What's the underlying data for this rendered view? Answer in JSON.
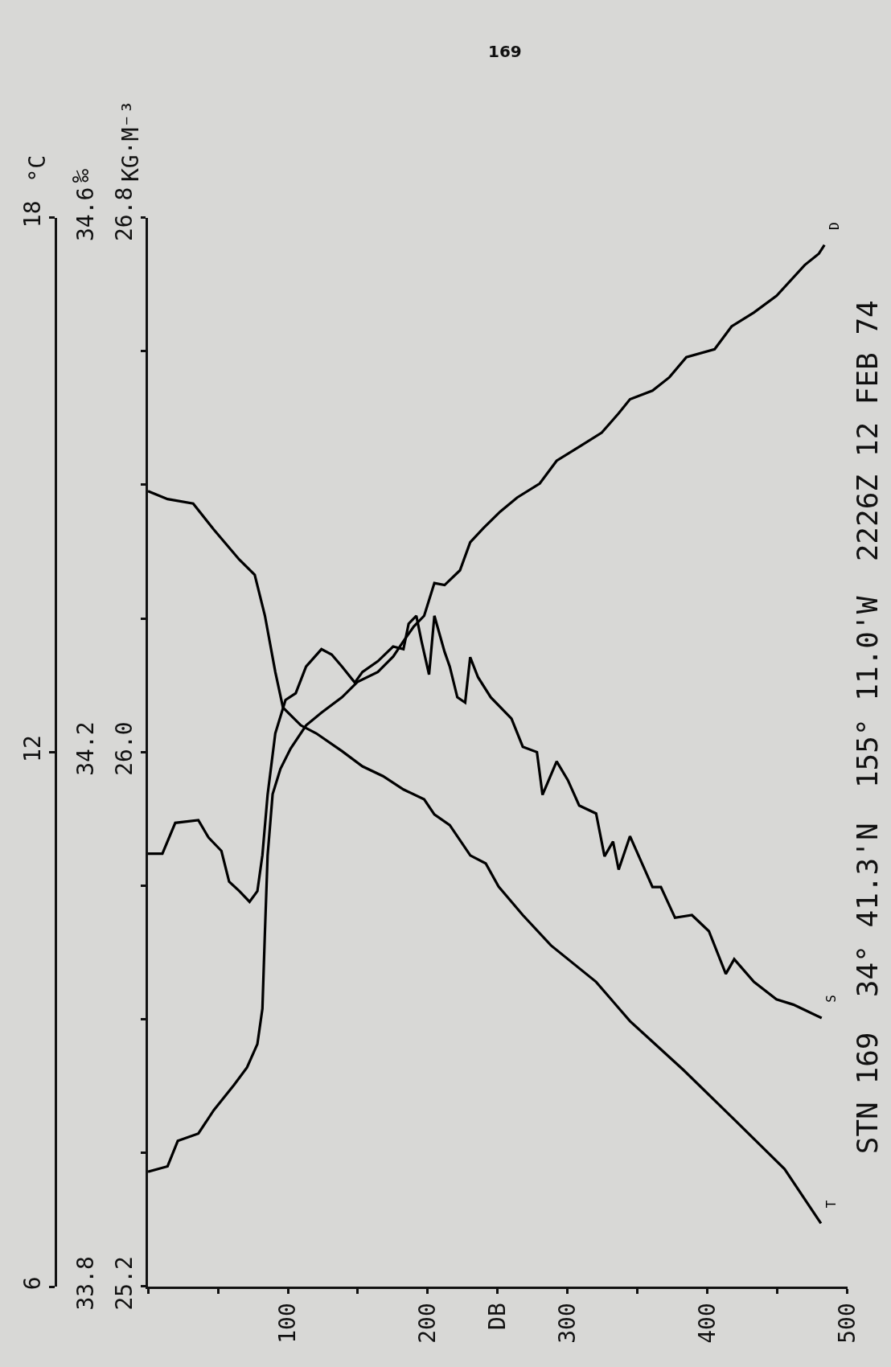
{
  "chart_data": {
    "type": "line",
    "title": "STN 169  34° 41.3'N  155° 11.0'W  2226Z 12 FEB 74",
    "ylabel": "°C",
    "y2label": "‰",
    "y3label": "KG·M⁻³",
    "annotations": [
      "169"
    ],
    "xlim": [
      0,
      500
    ],
    "xticks": [
      {
        "value": 0,
        "label": null
      },
      {
        "value": 50,
        "label": null
      },
      100,
      {
        "value": 150,
        "label": null
      },
      200,
      {
        "value": 250,
        "label": "DB"
      },
      300,
      {
        "value": 350,
        "label": null
      },
      400,
      {
        "value": 450,
        "label": null
      },
      500
    ],
    "ylim": [
      6,
      18
    ],
    "yticks": [
      6,
      12,
      18
    ],
    "y2lim": [
      33.8,
      34.6
    ],
    "y2ticks": [
      33.8,
      34.2,
      34.6
    ],
    "y3lim": [
      25.2,
      26.8
    ],
    "y3ticks": [
      25.2,
      {
        "value": 25.4,
        "label": null
      },
      {
        "value": 25.6,
        "label": null
      },
      {
        "value": 25.8,
        "label": null
      },
      {
        "value": 26.0,
        "label": "26.0"
      },
      {
        "value": 26.2,
        "label": null
      },
      {
        "value": 26.4,
        "label": null
      },
      {
        "value": 26.6,
        "label": null
      },
      26.8
    ],
    "grid": false,
    "legend": false,
    "marker": "none",
    "line_style": "solid",
    "series": [
      {
        "name": "T",
        "color": "#000000",
        "x": [
          0,
          14,
          32.3,
          46.9,
          65.3,
          76.3,
          83.6,
          91,
          96.5,
          109.3,
          120.3,
          138.7,
          153.3,
          168,
          182.6,
          197.4,
          204.7,
          215.7,
          230.4,
          241.4,
          250.6,
          267.9,
          288,
          320.3,
          344.5,
          382.8,
          420,
          455,
          481
        ],
        "values": [
          14.93,
          14.84,
          14.79,
          14.5,
          14.16,
          13.99,
          13.53,
          12.9,
          12.5,
          12.3,
          12.21,
          12.01,
          11.84,
          11.73,
          11.58,
          11.47,
          11.3,
          11.18,
          10.84,
          10.75,
          10.49,
          10.17,
          9.83,
          9.42,
          8.98,
          8.43,
          7.86,
          7.32,
          6.71
        ]
      },
      {
        "name": "S",
        "color": "#000000",
        "axis": "y2",
        "x": [
          0,
          10.3,
          19.5,
          36,
          43.3,
          52.5,
          58,
          65.3,
          72.6,
          78.2,
          81.8,
          85.5,
          91,
          98.3,
          105.6,
          113,
          124,
          131.3,
          138.7,
          147.8,
          153.3,
          164.3,
          175.2,
          182.6,
          186.3,
          191.8,
          195.5,
          200.9,
          204.7,
          212,
          215.7,
          221.1,
          226.7,
          230.3,
          235.9,
          245,
          259.8,
          267.9,
          278,
          282,
          292.1,
          300.1,
          308.2,
          320.3,
          326.3,
          332.4,
          336.4,
          344.5,
          360.6,
          366.6,
          376.7,
          388.8,
          400.9,
          413,
          419,
          433.1,
          449.2,
          461.3,
          469.4,
          481.5
        ],
        "values": [
          34.124,
          34.124,
          34.147,
          34.149,
          34.136,
          34.126,
          34.103,
          34.096,
          34.088,
          34.096,
          34.123,
          34.168,
          34.214,
          34.239,
          34.244,
          34.264,
          34.277,
          34.273,
          34.264,
          34.252,
          34.26,
          34.268,
          34.279,
          34.277,
          34.296,
          34.302,
          34.283,
          34.258,
          34.302,
          34.275,
          34.264,
          34.241,
          34.237,
          34.271,
          34.256,
          34.241,
          34.225,
          34.204,
          34.2,
          34.168,
          34.193,
          34.179,
          34.16,
          34.154,
          34.122,
          34.133,
          34.112,
          34.137,
          34.099,
          34.099,
          34.076,
          34.078,
          34.066,
          34.034,
          34.045,
          34.028,
          34.015,
          34.011,
          34.007,
          34.001
        ]
      },
      {
        "name": "D",
        "color": "#000000",
        "axis": "y3",
        "x": [
          0,
          14,
          21.3,
          36,
          47,
          61.6,
          70.8,
          78.2,
          81.8,
          83.6,
          85.5,
          89.1,
          94.7,
          101.9,
          113,
          124,
          138.7,
          149.7,
          164.3,
          175.3,
          182.6,
          190,
          197.4,
          204.7,
          212,
          223,
          230.3,
          239.7,
          251.8,
          263.9,
          280,
          292.1,
          308.2,
          324.3,
          336.4,
          344.5,
          360.6,
          372.7,
          384.8,
          405,
          417.1,
          433.1,
          449.3,
          469.4,
          479.5,
          483.5
        ],
        "values": [
          25.372,
          25.38,
          25.418,
          25.429,
          25.464,
          25.502,
          25.528,
          25.563,
          25.616,
          25.731,
          25.845,
          25.937,
          25.975,
          26.005,
          26.04,
          26.059,
          26.082,
          26.105,
          26.12,
          26.143,
          26.166,
          26.188,
          26.204,
          26.253,
          26.25,
          26.272,
          26.314,
          26.335,
          26.36,
          26.381,
          26.402,
          26.436,
          26.457,
          26.478,
          26.507,
          26.528,
          26.541,
          26.561,
          26.591,
          26.603,
          26.637,
          26.658,
          26.683,
          26.729,
          26.746,
          26.759
        ]
      }
    ]
  }
}
